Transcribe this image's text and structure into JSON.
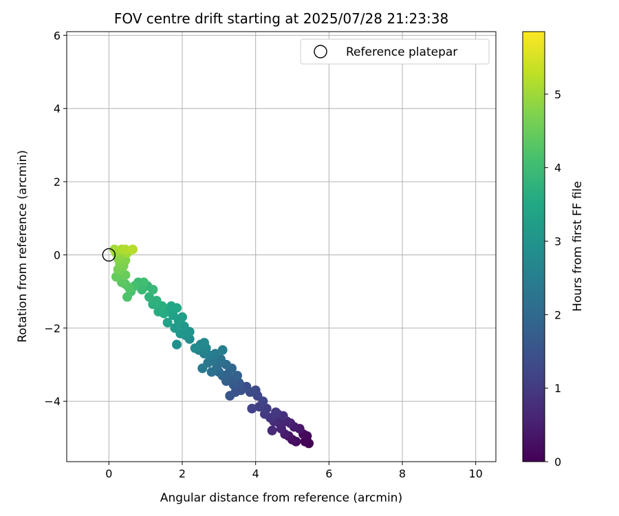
{
  "chart_data": {
    "type": "scatter",
    "title": "FOV centre drift starting at 2025/07/28 21:23:38",
    "xlabel": "Angular distance from reference (arcmin)",
    "ylabel": "Rotation from reference (arcmin)",
    "xlim": [
      -1.15,
      10.55
    ],
    "ylim": [
      -5.65,
      6.1
    ],
    "xticks": [
      "0",
      "2",
      "4",
      "6",
      "8",
      "10"
    ],
    "yticks": [
      "−4",
      "−2",
      "0",
      "2",
      "4",
      "6"
    ],
    "grid": true,
    "legend": {
      "placement": "top-right",
      "entries": [
        "Reference platepar"
      ]
    },
    "reference_point": {
      "name": "Reference platepar",
      "x": 0,
      "y": 0
    },
    "colorbar": {
      "label": "Hours from first FF file",
      "range": [
        0,
        5.85
      ],
      "ticks": [
        "0",
        "1",
        "2",
        "3",
        "4",
        "5"
      ],
      "colormap": "viridis"
    },
    "series": [
      {
        "color_by": "hours",
        "points": [
          {
            "x": 5.45,
            "y": -5.15,
            "h": 0.0
          },
          {
            "x": 5.35,
            "y": -5.1,
            "h": 0.05
          },
          {
            "x": 5.4,
            "y": -4.95,
            "h": 0.1
          },
          {
            "x": 5.3,
            "y": -4.9,
            "h": 0.15
          },
          {
            "x": 5.1,
            "y": -5.1,
            "h": 0.2
          },
          {
            "x": 5.0,
            "y": -5.05,
            "h": 0.25
          },
          {
            "x": 4.9,
            "y": -4.95,
            "h": 0.3
          },
          {
            "x": 5.2,
            "y": -4.75,
            "h": 0.35
          },
          {
            "x": 5.05,
            "y": -4.7,
            "h": 0.4
          },
          {
            "x": 4.8,
            "y": -4.9,
            "h": 0.45
          },
          {
            "x": 4.95,
            "y": -4.6,
            "h": 0.5
          },
          {
            "x": 4.7,
            "y": -4.75,
            "h": 0.55
          },
          {
            "x": 4.85,
            "y": -4.55,
            "h": 0.6
          },
          {
            "x": 4.65,
            "y": -4.6,
            "h": 0.65
          },
          {
            "x": 4.45,
            "y": -4.8,
            "h": 0.7
          },
          {
            "x": 4.5,
            "y": -4.55,
            "h": 0.75
          },
          {
            "x": 4.75,
            "y": -4.4,
            "h": 0.8
          },
          {
            "x": 4.6,
            "y": -4.35,
            "h": 0.85
          },
          {
            "x": 4.4,
            "y": -4.45,
            "h": 0.9
          },
          {
            "x": 4.55,
            "y": -4.3,
            "h": 0.95
          },
          {
            "x": 4.25,
            "y": -4.35,
            "h": 1.0
          },
          {
            "x": 4.3,
            "y": -4.2,
            "h": 1.05
          },
          {
            "x": 4.1,
            "y": -4.15,
            "h": 1.1
          },
          {
            "x": 3.9,
            "y": -4.2,
            "h": 1.15
          },
          {
            "x": 4.2,
            "y": -4.0,
            "h": 1.2
          },
          {
            "x": 4.05,
            "y": -3.85,
            "h": 1.25
          },
          {
            "x": 4.0,
            "y": -3.7,
            "h": 1.3
          },
          {
            "x": 3.85,
            "y": -3.75,
            "h": 1.35
          },
          {
            "x": 3.75,
            "y": -3.6,
            "h": 1.4
          },
          {
            "x": 3.6,
            "y": -3.7,
            "h": 1.45
          },
          {
            "x": 3.45,
            "y": -3.75,
            "h": 1.5
          },
          {
            "x": 3.3,
            "y": -3.85,
            "h": 1.55
          },
          {
            "x": 3.55,
            "y": -3.5,
            "h": 1.6
          },
          {
            "x": 3.4,
            "y": -3.55,
            "h": 1.65
          },
          {
            "x": 3.35,
            "y": -3.4,
            "h": 1.7
          },
          {
            "x": 3.2,
            "y": -3.45,
            "h": 1.75
          },
          {
            "x": 3.5,
            "y": -3.3,
            "h": 1.8
          },
          {
            "x": 3.25,
            "y": -3.25,
            "h": 1.85
          },
          {
            "x": 3.1,
            "y": -3.3,
            "h": 1.9
          },
          {
            "x": 3.35,
            "y": -3.1,
            "h": 1.95
          },
          {
            "x": 3.0,
            "y": -3.2,
            "h": 2.0
          },
          {
            "x": 3.2,
            "y": -3.0,
            "h": 2.05
          },
          {
            "x": 2.95,
            "y": -3.05,
            "h": 2.1
          },
          {
            "x": 2.8,
            "y": -3.2,
            "h": 2.15
          },
          {
            "x": 3.05,
            "y": -2.85,
            "h": 2.2
          },
          {
            "x": 2.85,
            "y": -2.9,
            "h": 2.25
          },
          {
            "x": 2.7,
            "y": -2.95,
            "h": 2.3
          },
          {
            "x": 2.55,
            "y": -3.1,
            "h": 2.35
          },
          {
            "x": 2.9,
            "y": -2.7,
            "h": 2.4
          },
          {
            "x": 2.75,
            "y": -2.75,
            "h": 2.45
          },
          {
            "x": 3.1,
            "y": -2.6,
            "h": 2.5
          },
          {
            "x": 2.6,
            "y": -2.7,
            "h": 2.55
          },
          {
            "x": 2.45,
            "y": -2.6,
            "h": 2.6
          },
          {
            "x": 2.65,
            "y": -2.55,
            "h": 2.65
          },
          {
            "x": 2.5,
            "y": -2.45,
            "h": 2.7
          },
          {
            "x": 2.6,
            "y": -2.4,
            "h": 2.75
          },
          {
            "x": 2.35,
            "y": -2.55,
            "h": 2.8
          },
          {
            "x": 2.2,
            "y": -2.3,
            "h": 2.85
          },
          {
            "x": 1.85,
            "y": -2.45,
            "h": 2.9
          },
          {
            "x": 2.1,
            "y": -2.2,
            "h": 2.95
          },
          {
            "x": 2.2,
            "y": -2.1,
            "h": 3.0
          },
          {
            "x": 1.95,
            "y": -2.15,
            "h": 3.05
          },
          {
            "x": 2.05,
            "y": -1.95,
            "h": 3.1
          },
          {
            "x": 1.8,
            "y": -2.0,
            "h": 3.15
          },
          {
            "x": 1.9,
            "y": -1.8,
            "h": 3.2
          },
          {
            "x": 2.0,
            "y": -1.7,
            "h": 3.25
          },
          {
            "x": 1.75,
            "y": -1.65,
            "h": 3.3
          },
          {
            "x": 1.6,
            "y": -1.85,
            "h": 3.35
          },
          {
            "x": 1.65,
            "y": -1.55,
            "h": 3.4
          },
          {
            "x": 1.85,
            "y": -1.45,
            "h": 3.45
          },
          {
            "x": 1.7,
            "y": -1.4,
            "h": 3.5
          },
          {
            "x": 1.5,
            "y": -1.6,
            "h": 3.55
          },
          {
            "x": 1.35,
            "y": -1.55,
            "h": 3.6
          },
          {
            "x": 1.45,
            "y": -1.4,
            "h": 3.65
          },
          {
            "x": 1.2,
            "y": -1.35,
            "h": 3.7
          },
          {
            "x": 1.3,
            "y": -1.25,
            "h": 3.75
          },
          {
            "x": 1.1,
            "y": -1.15,
            "h": 3.8
          },
          {
            "x": 1.05,
            "y": -0.85,
            "h": 3.85
          },
          {
            "x": 1.2,
            "y": -0.95,
            "h": 3.9
          },
          {
            "x": 0.9,
            "y": -0.95,
            "h": 3.95
          },
          {
            "x": 0.8,
            "y": -0.75,
            "h": 4.0
          },
          {
            "x": 0.95,
            "y": -0.75,
            "h": 4.05
          },
          {
            "x": 0.7,
            "y": -0.85,
            "h": 4.1
          },
          {
            "x": 0.6,
            "y": -1.0,
            "h": 4.15
          },
          {
            "x": 0.5,
            "y": -1.15,
            "h": 4.2
          },
          {
            "x": 0.55,
            "y": -0.9,
            "h": 4.25
          },
          {
            "x": 0.45,
            "y": -0.8,
            "h": 4.3
          },
          {
            "x": 0.35,
            "y": -0.75,
            "h": 4.35
          },
          {
            "x": 0.3,
            "y": -0.6,
            "h": 4.4
          },
          {
            "x": 0.2,
            "y": -0.6,
            "h": 4.45
          },
          {
            "x": 0.45,
            "y": -0.55,
            "h": 4.5
          },
          {
            "x": 0.35,
            "y": -0.45,
            "h": 4.55
          },
          {
            "x": 0.25,
            "y": -0.4,
            "h": 4.6
          },
          {
            "x": 0.4,
            "y": -0.3,
            "h": 4.65
          },
          {
            "x": 0.3,
            "y": -0.25,
            "h": 4.7
          },
          {
            "x": 0.45,
            "y": -0.15,
            "h": 4.75
          },
          {
            "x": 0.25,
            "y": -0.1,
            "h": 4.8
          },
          {
            "x": 0.35,
            "y": 0.0,
            "h": 4.85
          },
          {
            "x": 0.2,
            "y": 0.05,
            "h": 4.9
          },
          {
            "x": 0.3,
            "y": 0.1,
            "h": 4.95
          },
          {
            "x": 0.5,
            "y": 0.05,
            "h": 5.0
          },
          {
            "x": 0.15,
            "y": 0.15,
            "h": 5.05
          },
          {
            "x": 0.35,
            "y": 0.15,
            "h": 5.1
          },
          {
            "x": 0.45,
            "y": 0.15,
            "h": 5.15
          },
          {
            "x": 0.65,
            "y": 0.15,
            "h": 5.2
          }
        ]
      }
    ]
  }
}
